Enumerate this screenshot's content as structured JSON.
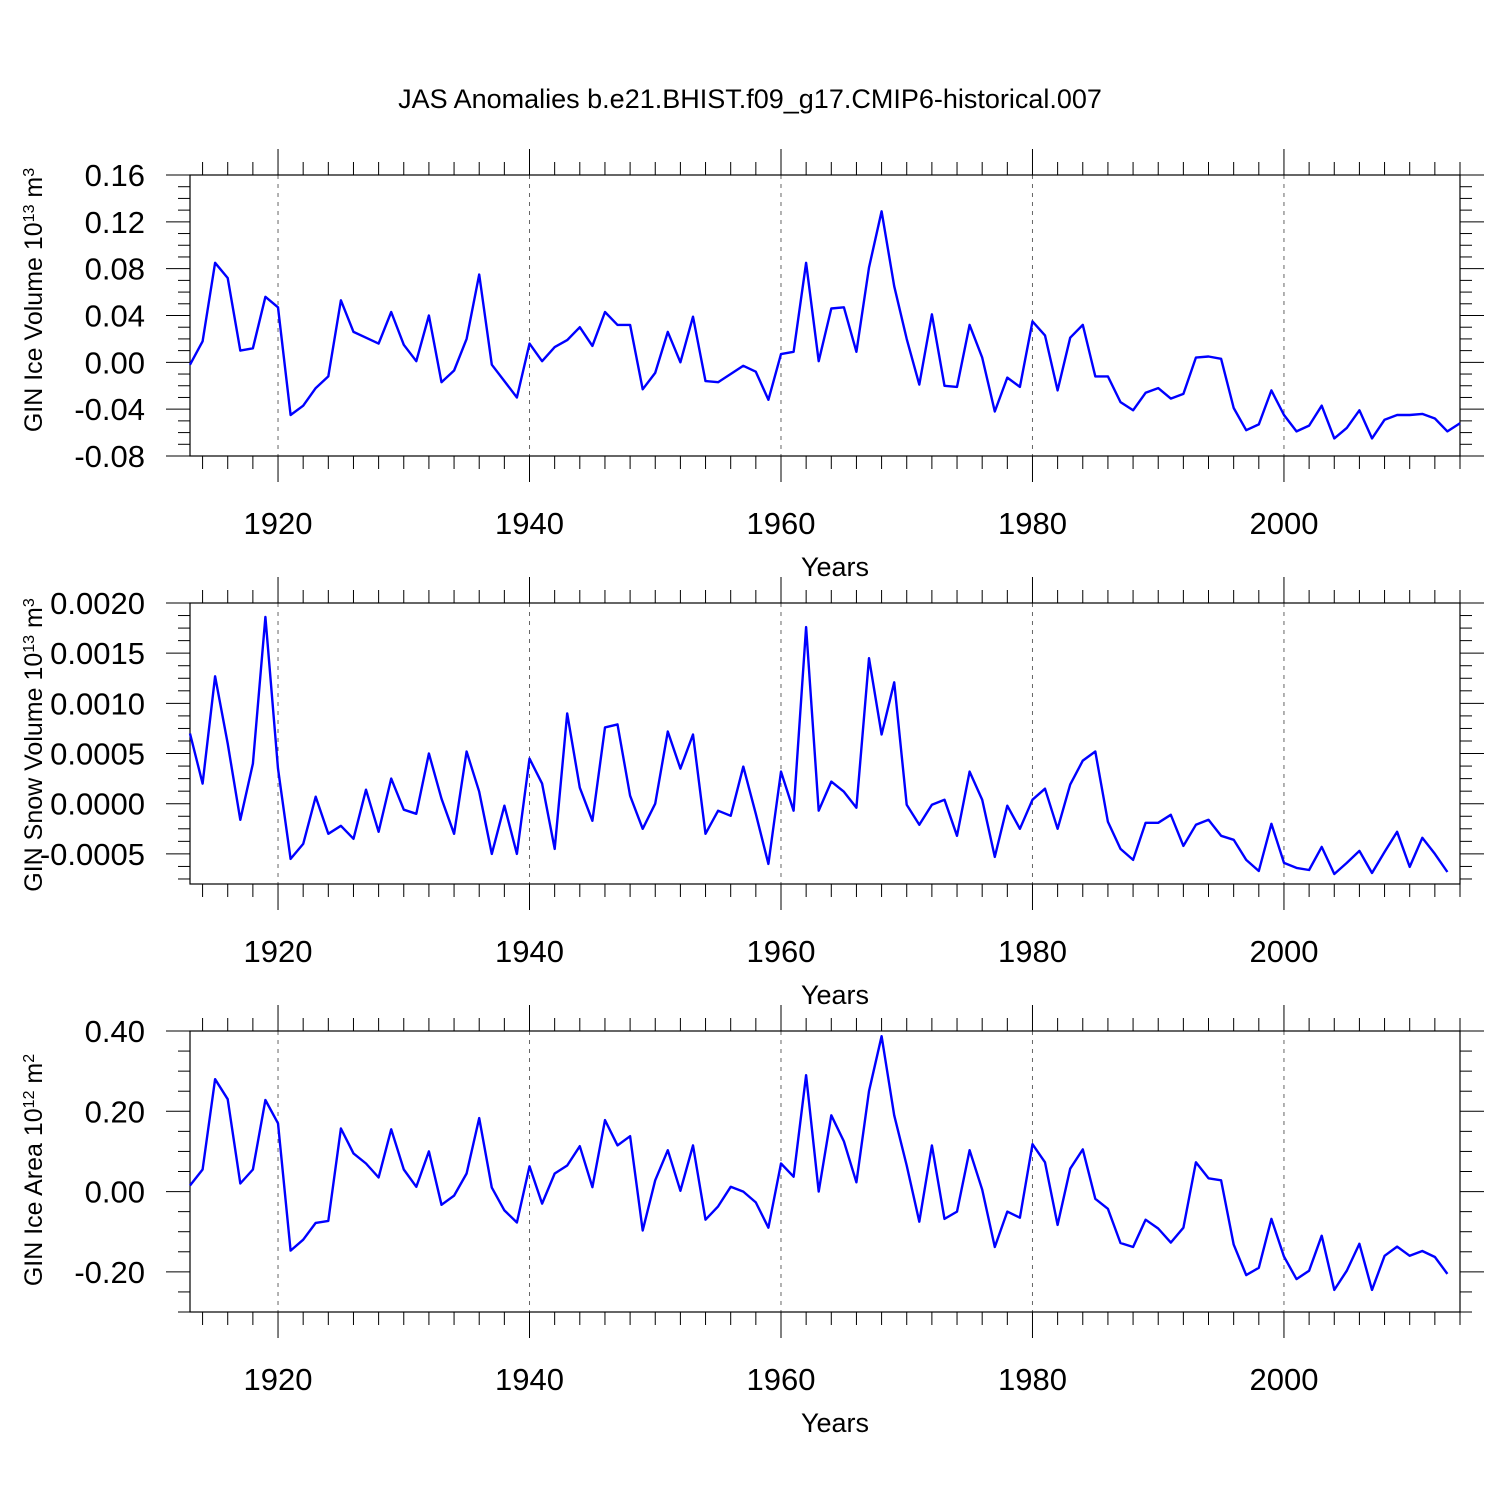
{
  "title": "JAS Anomalies b.e21.BHIST.f09_g17.CMIP6-historical.007",
  "colors": {
    "line": "#0000ff",
    "axis": "#000000",
    "grid": "#666666"
  },
  "chart_data": [
    {
      "type": "line",
      "ylabel_main": "GIN Ice Volume 10",
      "ylabel_exp": "13",
      "ylabel_unit": " m",
      "ylabel_unit_exp": "3",
      "xlabel": "Years",
      "xlim": [
        1913,
        2014
      ],
      "ylim": [
        -0.08,
        0.16
      ],
      "yticks": [
        -0.08,
        -0.04,
        0.0,
        0.04,
        0.08,
        0.12,
        0.16
      ],
      "ytick_labels": [
        "-0.08",
        "-0.04",
        "0.00",
        "0.04",
        "0.08",
        "0.12",
        "0.16"
      ],
      "xticks": [
        1920,
        1940,
        1960,
        1980,
        2000
      ],
      "xtick_labels": [
        "1920",
        "1940",
        "1960",
        "1980",
        "2000"
      ],
      "x_start": 1913,
      "values": [
        -0.002,
        0.018,
        0.085,
        0.072,
        0.01,
        0.012,
        0.056,
        0.047,
        -0.045,
        -0.037,
        -0.022,
        -0.012,
        0.053,
        0.026,
        0.021,
        0.016,
        0.043,
        0.015,
        0.001,
        0.04,
        -0.017,
        -0.007,
        0.02,
        0.075,
        -0.002,
        -0.016,
        -0.03,
        0.016,
        0.001,
        0.013,
        0.019,
        0.03,
        0.014,
        0.043,
        0.032,
        0.032,
        -0.023,
        -0.009,
        0.026,
        0.0,
        0.039,
        -0.016,
        -0.017,
        -0.01,
        -0.003,
        -0.008,
        -0.032,
        0.007,
        0.009,
        0.085,
        0.001,
        0.046,
        0.047,
        0.009,
        0.081,
        0.129,
        0.065,
        0.02,
        -0.019,
        0.041,
        -0.02,
        -0.021,
        0.032,
        0.004,
        -0.042,
        -0.013,
        -0.021,
        0.035,
        0.023,
        -0.024,
        0.021,
        0.032,
        -0.012,
        -0.012,
        -0.034,
        -0.041,
        -0.026,
        -0.022,
        -0.031,
        -0.027,
        0.004,
        0.005,
        0.003,
        -0.039,
        -0.058,
        -0.053,
        -0.024,
        -0.045,
        -0.059,
        -0.054,
        -0.037,
        -0.065,
        -0.056,
        -0.041,
        -0.065,
        -0.049,
        -0.045,
        -0.045,
        -0.044,
        -0.048,
        -0.059,
        -0.052
      ]
    },
    {
      "type": "line",
      "ylabel_main": "GIN Snow Volume 10",
      "ylabel_exp": "13",
      "ylabel_unit": " m",
      "ylabel_unit_exp": "3",
      "xlabel": "Years",
      "xlim": [
        1913,
        2014
      ],
      "ylim": [
        -0.0008,
        0.002
      ],
      "yticks": [
        -0.0005,
        0.0,
        0.0005,
        0.001,
        0.0015,
        0.002
      ],
      "ytick_labels": [
        "-0.0005",
        "0.0000",
        "0.0005",
        "0.0010",
        "0.0015",
        "0.0020"
      ],
      "xticks": [
        1920,
        1940,
        1960,
        1980,
        2000
      ],
      "xtick_labels": [
        "1920",
        "1940",
        "1960",
        "1980",
        "2000"
      ],
      "x_start": 1913,
      "values": [
        0.0007,
        0.0002,
        0.00127,
        0.0006,
        -0.00016,
        0.0004,
        0.00186,
        0.00035,
        -0.00055,
        -0.0004,
        7e-05,
        -0.0003,
        -0.00022,
        -0.00035,
        0.00014,
        -0.00028,
        0.00025,
        -6e-05,
        -0.0001,
        0.0005,
        5e-05,
        -0.0003,
        0.00052,
        0.00012,
        -0.0005,
        -2e-05,
        -0.0005,
        0.00045,
        0.0002,
        -0.00045,
        0.0009,
        0.00016,
        -0.00017,
        0.00076,
        0.00079,
        8e-05,
        -0.00025,
        0.0,
        0.00072,
        0.00035,
        0.00069,
        -0.0003,
        -7e-05,
        -0.00012,
        0.00037,
        -0.0001,
        -0.0006,
        0.00032,
        -7e-05,
        0.00176,
        -7e-05,
        0.00022,
        0.00012,
        -4e-05,
        0.00145,
        0.00069,
        0.00121,
        -1e-05,
        -0.00021,
        -1e-05,
        4e-05,
        -0.00032,
        0.00032,
        4e-05,
        -0.00053,
        -2e-05,
        -0.00025,
        4e-05,
        0.00015,
        -0.00025,
        0.00019,
        0.00043,
        0.00052,
        -0.00018,
        -0.00045,
        -0.00056,
        -0.00019,
        -0.00019,
        -0.00011,
        -0.00042,
        -0.00021,
        -0.00016,
        -0.00032,
        -0.00036,
        -0.00056,
        -0.00067,
        -0.0002,
        -0.00059,
        -0.00064,
        -0.00066,
        -0.00043,
        -0.0007,
        -0.00059,
        -0.00047,
        -0.00069,
        -0.00048,
        -0.00028,
        -0.00063,
        -0.00034,
        -0.0005,
        -0.00068
      ]
    },
    {
      "type": "line",
      "ylabel_main": "GIN Ice Area 10",
      "ylabel_exp": "12",
      "ylabel_unit": " m",
      "ylabel_unit_exp": "2",
      "xlabel": "Years",
      "xlim": [
        1913,
        2014
      ],
      "ylim": [
        -0.3,
        0.4
      ],
      "yticks": [
        -0.2,
        0.0,
        0.2,
        0.4
      ],
      "ytick_labels": [
        "-0.20",
        "0.00",
        "0.20",
        "0.40"
      ],
      "xticks": [
        1920,
        1940,
        1960,
        1980,
        2000
      ],
      "xtick_labels": [
        "1920",
        "1940",
        "1960",
        "1980",
        "2000"
      ],
      "x_start": 1913,
      "values": [
        0.015,
        0.055,
        0.28,
        0.23,
        0.02,
        0.055,
        0.228,
        0.17,
        -0.147,
        -0.12,
        -0.078,
        -0.073,
        0.157,
        0.095,
        0.07,
        0.035,
        0.155,
        0.055,
        0.012,
        0.1,
        -0.033,
        -0.01,
        0.045,
        0.183,
        0.01,
        -0.047,
        -0.077,
        0.063,
        -0.03,
        0.045,
        0.065,
        0.113,
        0.011,
        0.178,
        0.115,
        0.138,
        -0.097,
        0.028,
        0.103,
        0.002,
        0.115,
        -0.07,
        -0.037,
        0.012,
        0.0,
        -0.027,
        -0.09,
        0.07,
        0.037,
        0.29,
        0.0,
        0.19,
        0.125,
        0.023,
        0.25,
        0.387,
        0.19,
        0.065,
        -0.075,
        0.115,
        -0.068,
        -0.05,
        0.103,
        0.005,
        -0.138,
        -0.05,
        -0.065,
        0.118,
        0.073,
        -0.083,
        0.057,
        0.105,
        -0.018,
        -0.043,
        -0.128,
        -0.138,
        -0.07,
        -0.092,
        -0.127,
        -0.09,
        0.073,
        0.033,
        0.028,
        -0.132,
        -0.208,
        -0.19,
        -0.068,
        -0.162,
        -0.218,
        -0.197,
        -0.11,
        -0.245,
        -0.197,
        -0.13,
        -0.245,
        -0.16,
        -0.137,
        -0.16,
        -0.148,
        -0.163,
        -0.205
      ]
    }
  ]
}
